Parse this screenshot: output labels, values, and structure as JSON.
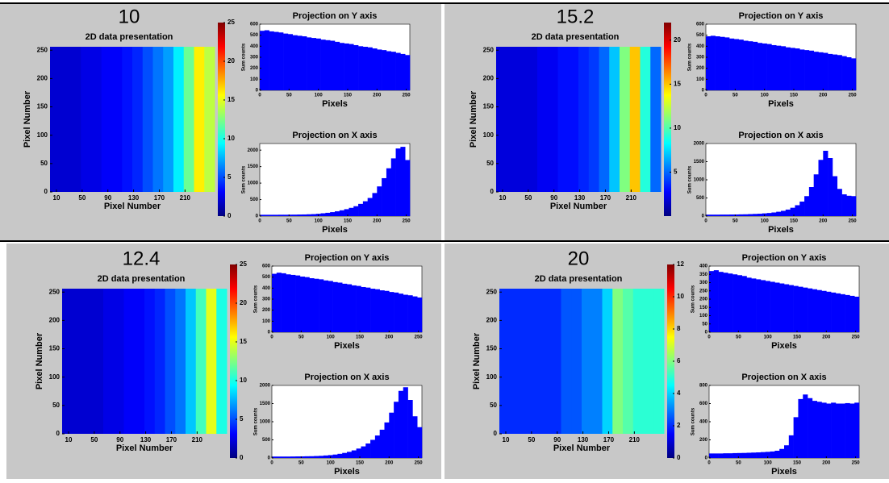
{
  "chart_data": [
    {
      "type": "heatmap",
      "title": "10",
      "subtitle": "2D data presentation",
      "x_label": "Pixel Number",
      "y_label": "Pixel Number",
      "column_edges": [
        0,
        16,
        32,
        48,
        64,
        80,
        96,
        112,
        128,
        144,
        160,
        176,
        192,
        208,
        224,
        240,
        256
      ],
      "values": [
        2,
        2,
        2,
        2.5,
        2.5,
        3,
        3,
        3.5,
        4,
        5,
        6,
        7,
        9,
        12,
        16,
        14
      ],
      "xlim": [
        0,
        256
      ],
      "xticks": [
        10,
        50,
        90,
        130,
        170,
        210
      ],
      "ylim": [
        0,
        256
      ],
      "yticks": [
        0,
        50,
        100,
        150,
        200,
        250
      ],
      "colorbar_lim": [
        0,
        25
      ],
      "colorbar_ticks": [
        0,
        5,
        10,
        15,
        20,
        25
      ]
    },
    {
      "type": "histogram",
      "title": "Projection on Y axis",
      "x_label": "Pixels",
      "y_label": "Sum counts",
      "color": "#0000ff",
      "bins": [
        0,
        8,
        16,
        24,
        32,
        40,
        48,
        56,
        64,
        72,
        80,
        88,
        96,
        104,
        112,
        120,
        128,
        136,
        144,
        152,
        160,
        168,
        176,
        184,
        192,
        200,
        208,
        216,
        224,
        232,
        240,
        248,
        256
      ],
      "values": [
        540,
        545,
        535,
        530,
        525,
        515,
        510,
        500,
        495,
        490,
        480,
        475,
        470,
        460,
        455,
        450,
        440,
        430,
        425,
        420,
        410,
        400,
        395,
        390,
        380,
        370,
        365,
        355,
        350,
        340,
        330,
        320
      ],
      "xlim": [
        0,
        256
      ],
      "xticks": [
        0,
        50,
        100,
        150,
        200,
        250
      ],
      "ylim": [
        0,
        600
      ],
      "yticks": [
        0,
        100,
        200,
        300,
        400,
        500,
        600
      ]
    },
    {
      "type": "histogram",
      "title": "Projection on X axis",
      "x_label": "Pixels",
      "y_label": "Sum counts",
      "color": "#0000ff",
      "bins": [
        0,
        8,
        16,
        24,
        32,
        40,
        48,
        56,
        64,
        72,
        80,
        88,
        96,
        104,
        112,
        120,
        128,
        136,
        144,
        152,
        160,
        168,
        176,
        184,
        192,
        200,
        208,
        216,
        224,
        232,
        240,
        248,
        256
      ],
      "values": [
        40,
        40,
        40,
        40,
        42,
        42,
        44,
        45,
        48,
        50,
        55,
        60,
        70,
        85,
        100,
        120,
        145,
        175,
        210,
        250,
        300,
        370,
        450,
        550,
        700,
        900,
        1150,
        1450,
        1750,
        2050,
        2100,
        1700
      ],
      "xlim": [
        0,
        256
      ],
      "xticks": [
        0,
        50,
        100,
        150,
        200,
        250
      ],
      "ylim": [
        0,
        2200
      ],
      "yticks": [
        0,
        500,
        1000,
        1500,
        2000
      ]
    },
    {
      "type": "heatmap",
      "title": "15.2",
      "subtitle": "2D data presentation",
      "x_label": "Pixel Number",
      "y_label": "Pixel Number",
      "column_edges": [
        0,
        16,
        32,
        48,
        64,
        80,
        96,
        112,
        128,
        144,
        160,
        176,
        192,
        208,
        224,
        240,
        256
      ],
      "values": [
        2,
        2,
        2,
        2,
        2.5,
        2.5,
        3,
        3,
        3.5,
        4,
        5,
        7,
        11,
        15,
        9,
        5
      ],
      "xlim": [
        0,
        256
      ],
      "xticks": [
        10,
        50,
        90,
        130,
        170,
        210
      ],
      "ylim": [
        0,
        256
      ],
      "yticks": [
        0,
        50,
        100,
        150,
        200,
        250
      ],
      "colorbar_lim": [
        0,
        22
      ],
      "colorbar_ticks": [
        5,
        10,
        15,
        20
      ]
    },
    {
      "type": "histogram",
      "title": "Projection on Y axis",
      "x_label": "Pixels",
      "y_label": "Sum counts",
      "color": "#0000ff",
      "bins": [
        0,
        8,
        16,
        24,
        32,
        40,
        48,
        56,
        64,
        72,
        80,
        88,
        96,
        104,
        112,
        120,
        128,
        136,
        144,
        152,
        160,
        168,
        176,
        184,
        192,
        200,
        208,
        216,
        224,
        232,
        240,
        248,
        256
      ],
      "values": [
        490,
        495,
        490,
        485,
        480,
        470,
        465,
        460,
        450,
        445,
        440,
        430,
        425,
        420,
        410,
        405,
        400,
        390,
        385,
        380,
        370,
        365,
        360,
        350,
        345,
        340,
        330,
        325,
        320,
        310,
        300,
        290
      ],
      "xlim": [
        0,
        256
      ],
      "xticks": [
        0,
        50,
        100,
        150,
        200,
        250
      ],
      "ylim": [
        0,
        600
      ],
      "yticks": [
        0,
        100,
        200,
        300,
        400,
        500,
        600
      ]
    },
    {
      "type": "histogram",
      "title": "Projection on X axis",
      "x_label": "Pixels",
      "y_label": "Sum counts",
      "color": "#0000ff",
      "bins": [
        0,
        8,
        16,
        24,
        32,
        40,
        48,
        56,
        64,
        72,
        80,
        88,
        96,
        104,
        112,
        120,
        128,
        136,
        144,
        152,
        160,
        168,
        176,
        184,
        192,
        200,
        208,
        216,
        224,
        232,
        240,
        248,
        256
      ],
      "values": [
        40,
        40,
        40,
        42,
        42,
        44,
        45,
        48,
        50,
        55,
        60,
        65,
        75,
        85,
        100,
        120,
        145,
        180,
        230,
        300,
        400,
        550,
        800,
        1150,
        1550,
        1800,
        1600,
        1100,
        750,
        600,
        560,
        550
      ],
      "xlim": [
        0,
        256
      ],
      "xticks": [
        0,
        50,
        100,
        150,
        200,
        250
      ],
      "ylim": [
        0,
        2000
      ],
      "yticks": [
        0,
        500,
        1000,
        1500,
        2000
      ]
    },
    {
      "type": "heatmap",
      "title": "12.4",
      "subtitle": "2D data presentation",
      "x_label": "Pixel Number",
      "y_label": "Pixel Number",
      "column_edges": [
        0,
        16,
        32,
        48,
        64,
        80,
        96,
        112,
        128,
        144,
        160,
        176,
        192,
        208,
        224,
        240,
        256
      ],
      "values": [
        2,
        2,
        2,
        2,
        2.5,
        2.5,
        3,
        3,
        3.5,
        4,
        5,
        6,
        8,
        11,
        15,
        10
      ],
      "xlim": [
        0,
        256
      ],
      "xticks": [
        10,
        50,
        90,
        130,
        170,
        210
      ],
      "ylim": [
        0,
        256
      ],
      "yticks": [
        0,
        50,
        100,
        150,
        200,
        250
      ],
      "colorbar_lim": [
        0,
        25
      ],
      "colorbar_ticks": [
        0,
        5,
        10,
        15,
        20,
        25
      ]
    },
    {
      "type": "histogram",
      "title": "Projection on Y axis",
      "x_label": "Pixels",
      "y_label": "Sum counts",
      "color": "#0000ff",
      "bins": [
        0,
        8,
        16,
        24,
        32,
        40,
        48,
        56,
        64,
        72,
        80,
        88,
        96,
        104,
        112,
        120,
        128,
        136,
        144,
        152,
        160,
        168,
        176,
        184,
        192,
        200,
        208,
        216,
        224,
        232,
        240,
        248,
        256
      ],
      "values": [
        530,
        540,
        535,
        525,
        520,
        515,
        505,
        500,
        490,
        485,
        480,
        470,
        465,
        455,
        450,
        440,
        435,
        425,
        420,
        410,
        405,
        395,
        390,
        380,
        375,
        365,
        360,
        350,
        340,
        335,
        325,
        315
      ],
      "xlim": [
        0,
        256
      ],
      "xticks": [
        0,
        50,
        100,
        150,
        200,
        250
      ],
      "ylim": [
        0,
        600
      ],
      "yticks": [
        0,
        100,
        200,
        300,
        400,
        500,
        600
      ]
    },
    {
      "type": "histogram",
      "title": "Projection on X axis",
      "x_label": "Pixels",
      "y_label": "Sum counts",
      "color": "#0000ff",
      "bins": [
        0,
        8,
        16,
        24,
        32,
        40,
        48,
        56,
        64,
        72,
        80,
        88,
        96,
        104,
        112,
        120,
        128,
        136,
        144,
        152,
        160,
        168,
        176,
        184,
        192,
        200,
        208,
        216,
        224,
        232,
        240,
        248,
        256
      ],
      "values": [
        40,
        40,
        40,
        40,
        42,
        44,
        45,
        48,
        50,
        55,
        60,
        70,
        80,
        95,
        115,
        140,
        170,
        210,
        260,
        320,
        400,
        500,
        620,
        780,
        980,
        1250,
        1550,
        1850,
        1950,
        1600,
        1150,
        850
      ],
      "xlim": [
        0,
        256
      ],
      "xticks": [
        0,
        50,
        100,
        150,
        200,
        250
      ],
      "ylim": [
        0,
        2000
      ],
      "yticks": [
        0,
        500,
        1000,
        1500,
        2000
      ]
    },
    {
      "type": "heatmap",
      "title": "20",
      "subtitle": "2D data presentation",
      "x_label": "Pixel Number",
      "y_label": "Pixel Number",
      "column_edges": [
        0,
        16,
        32,
        48,
        64,
        80,
        96,
        112,
        128,
        144,
        160,
        176,
        192,
        208,
        224,
        240,
        256
      ],
      "values": [
        2,
        2,
        2,
        2,
        2,
        2,
        2.5,
        2.5,
        3,
        3,
        4,
        6,
        5.5,
        5,
        5,
        5
      ],
      "xlim": [
        0,
        256
      ],
      "xticks": [
        10,
        50,
        90,
        130,
        170,
        210
      ],
      "ylim": [
        0,
        256
      ],
      "yticks": [
        0,
        50,
        100,
        150,
        200,
        250
      ],
      "colorbar_lim": [
        0,
        12
      ],
      "colorbar_ticks": [
        0,
        2,
        4,
        6,
        8,
        10,
        12
      ]
    },
    {
      "type": "histogram",
      "title": "Projection on Y axis",
      "x_label": "Pixels",
      "y_label": "Sum counts",
      "color": "#0000ff",
      "bins": [
        0,
        8,
        16,
        24,
        32,
        40,
        48,
        56,
        64,
        72,
        80,
        88,
        96,
        104,
        112,
        120,
        128,
        136,
        144,
        152,
        160,
        168,
        176,
        184,
        192,
        200,
        208,
        216,
        224,
        232,
        240,
        248,
        256
      ],
      "values": [
        370,
        375,
        365,
        360,
        355,
        350,
        345,
        340,
        330,
        325,
        320,
        315,
        310,
        305,
        300,
        295,
        290,
        285,
        280,
        275,
        270,
        265,
        260,
        255,
        250,
        245,
        240,
        235,
        230,
        225,
        220,
        215
      ],
      "xlim": [
        0,
        256
      ],
      "xticks": [
        0,
        50,
        100,
        150,
        200,
        250
      ],
      "ylim": [
        0,
        400
      ],
      "yticks": [
        0,
        50,
        100,
        150,
        200,
        250,
        300,
        350,
        400
      ]
    },
    {
      "type": "histogram",
      "title": "Projection on X axis",
      "x_label": "Pixels",
      "y_label": "Sum counts",
      "color": "#0000ff",
      "bins": [
        0,
        8,
        16,
        24,
        32,
        40,
        48,
        56,
        64,
        72,
        80,
        88,
        96,
        104,
        112,
        120,
        128,
        136,
        144,
        152,
        160,
        168,
        176,
        184,
        192,
        200,
        208,
        216,
        224,
        232,
        240,
        248,
        256
      ],
      "values": [
        50,
        50,
        50,
        52,
        52,
        54,
        55,
        56,
        58,
        60,
        62,
        65,
        68,
        72,
        80,
        100,
        140,
        250,
        450,
        650,
        700,
        660,
        630,
        620,
        610,
        600,
        610,
        600,
        600,
        605,
        600,
        610
      ],
      "xlim": [
        0,
        256
      ],
      "xticks": [
        0,
        50,
        100,
        150,
        200,
        250
      ],
      "ylim": [
        0,
        800
      ],
      "yticks": [
        0,
        200,
        400,
        600,
        800
      ]
    }
  ]
}
